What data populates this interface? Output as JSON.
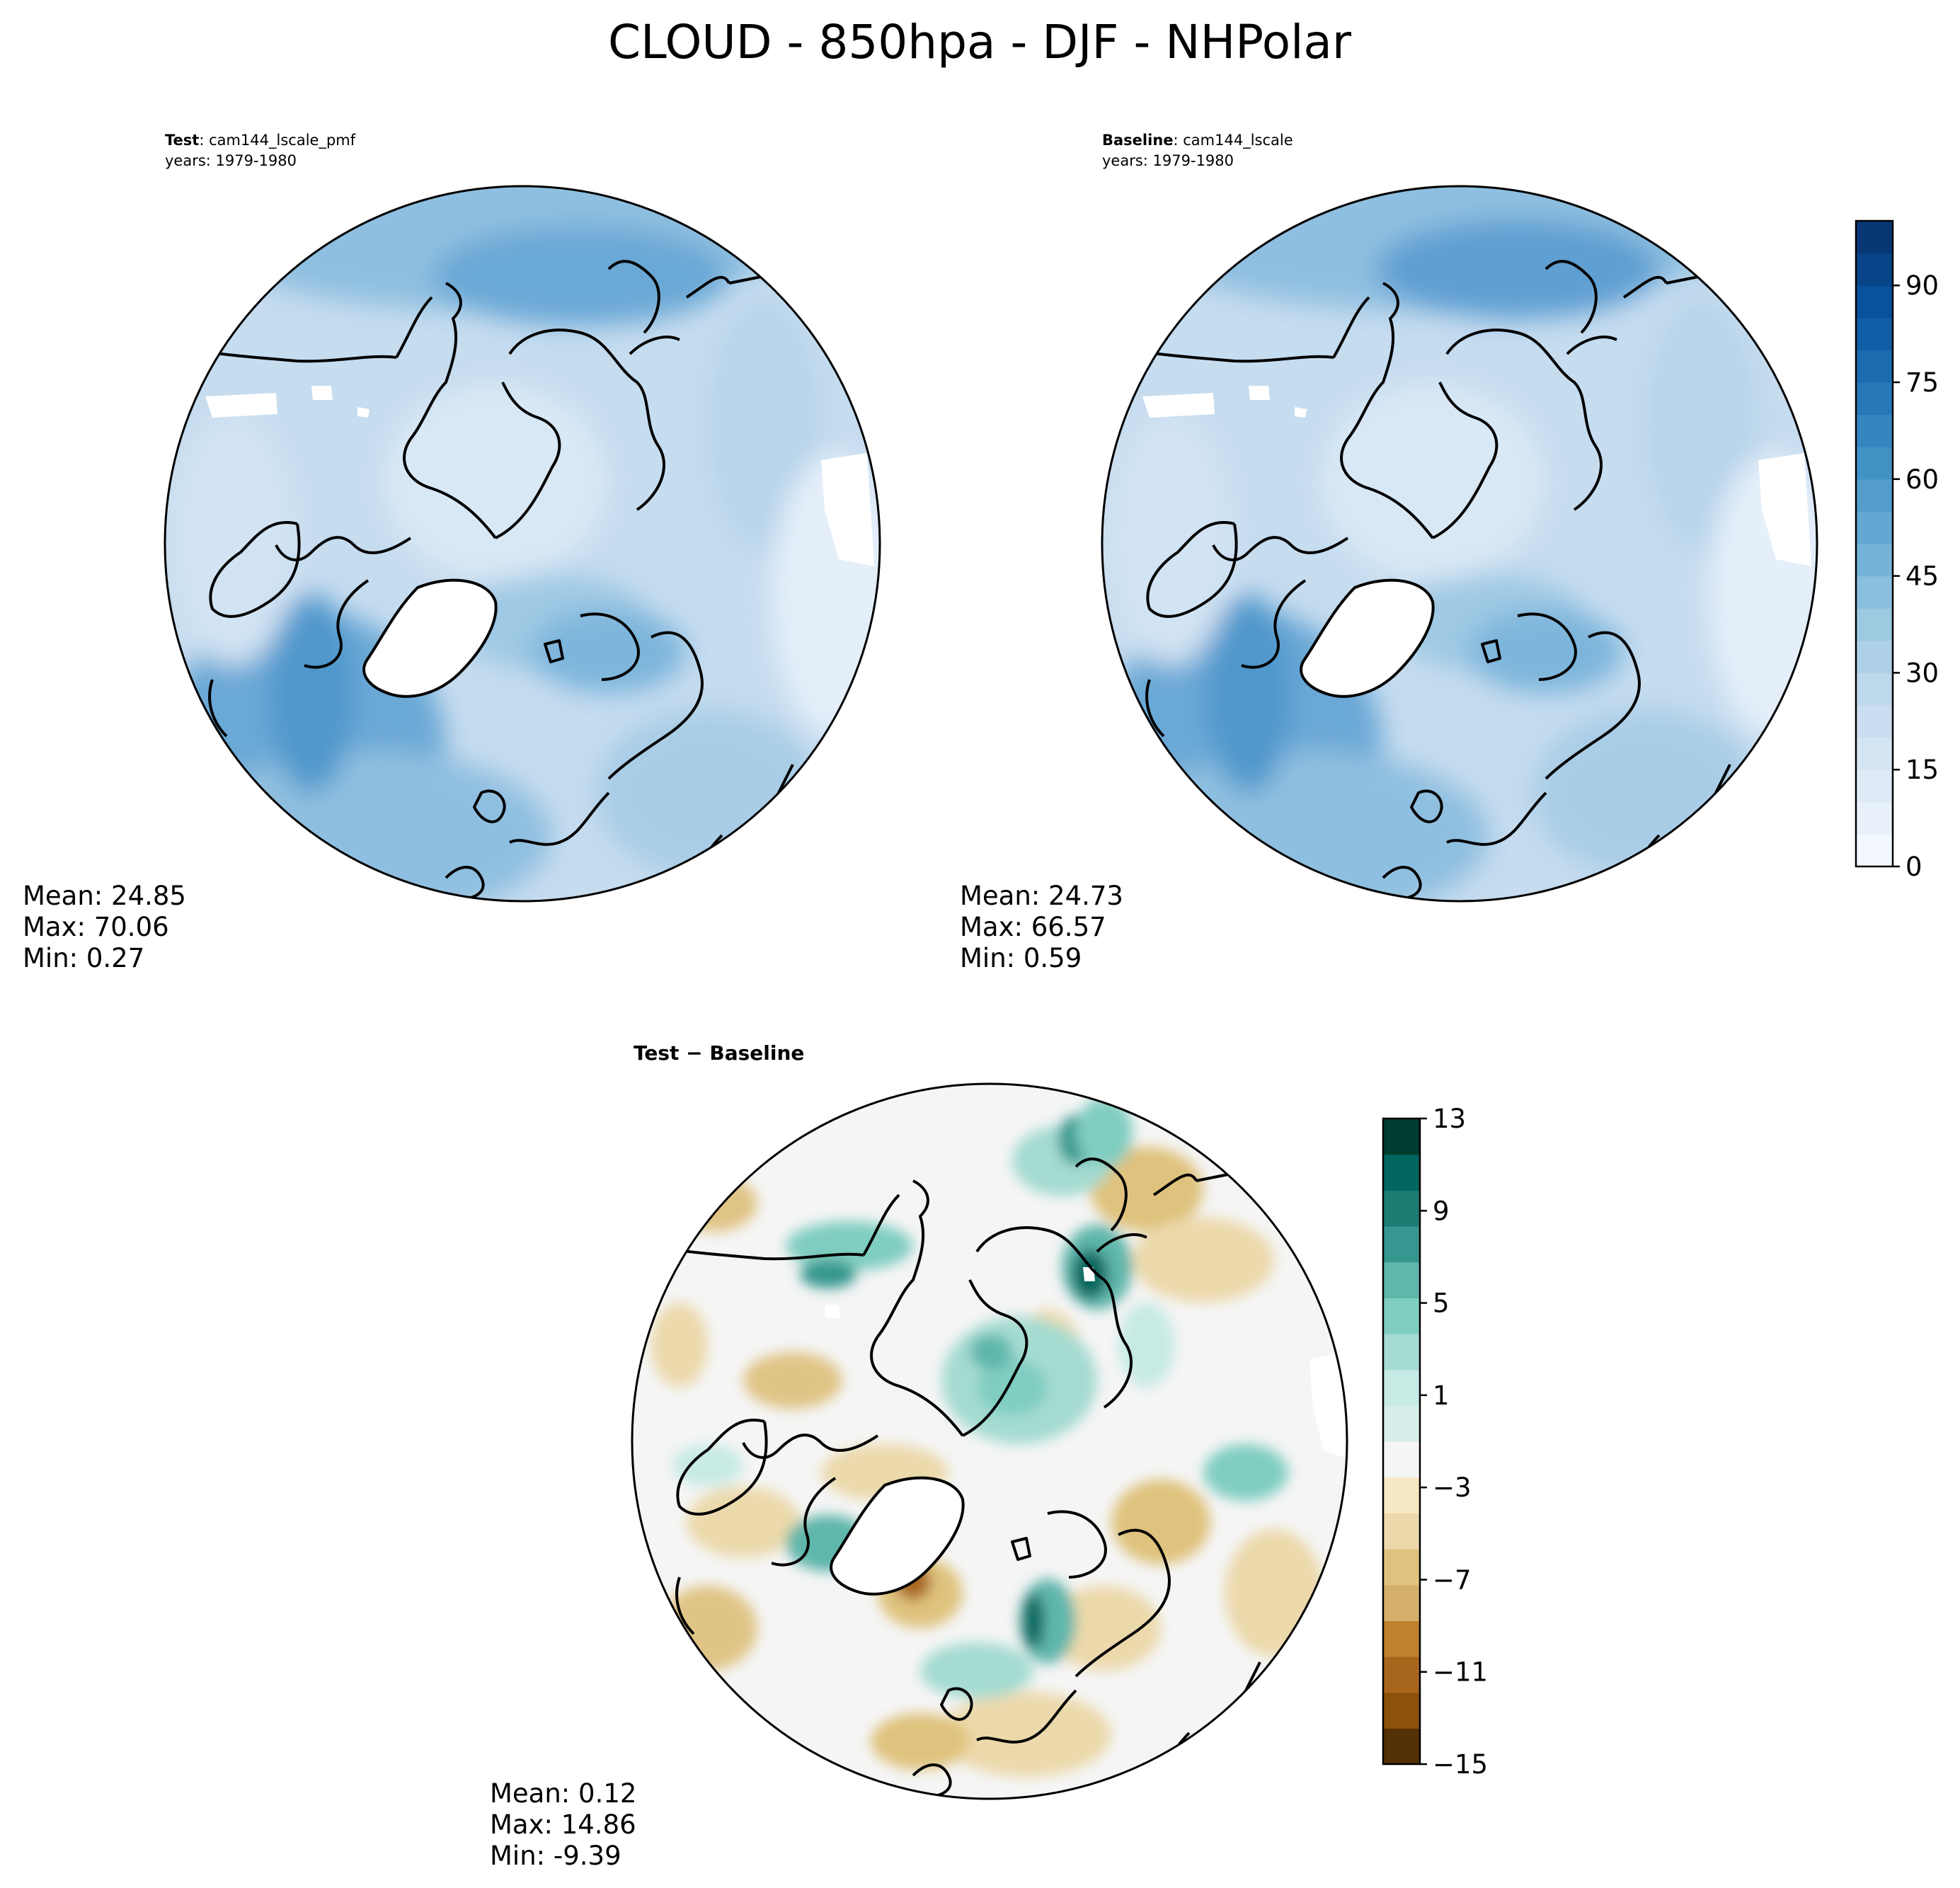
{
  "chart_data": {
    "type": "heatmap",
    "title": "CLOUD - 850hpa - DJF - NHPolar",
    "panels": [
      {
        "label_bold": "Test",
        "label_rest": ": cam144_lscale_pmf",
        "years": "years: 1979-1980",
        "mean": "Mean: 24.85",
        "max": "Max: 70.06",
        "min": "Min:  0.27"
      },
      {
        "label_bold": "Baseline",
        "label_rest": ": cam144_lscale",
        "years": "years: 1979-1980",
        "mean": "Mean: 24.73",
        "max": "Max: 66.57",
        "min": "Min:  0.59"
      },
      {
        "label_bold": "Test − Baseline",
        "mean": "Mean:  0.12",
        "max": "Max: 14.86",
        "min": "Min: -9.39"
      }
    ],
    "colorbar_main": {
      "colormap": "Blues",
      "range": [
        0,
        100
      ],
      "ticks": [
        0,
        15,
        30,
        45,
        60,
        75,
        90
      ],
      "tick_labels": [
        "0",
        "15",
        "30",
        "45",
        "60",
        "75",
        "90"
      ],
      "levels": 20
    },
    "colorbar_diff": {
      "colormap": "BrBG",
      "range": [
        -15,
        13
      ],
      "ticks": [
        -15,
        -11,
        -7,
        -3,
        1,
        5,
        9,
        13
      ],
      "tick_labels": [
        "−15",
        "−11",
        "−7",
        "−3",
        "1",
        "5",
        "9",
        "13"
      ],
      "colors": [
        "#543005",
        "#8c510a",
        "#a8661c",
        "#bf812d",
        "#d5b06b",
        "#dfc27d",
        "#ecd9ab",
        "#f6e8c3",
        "#f5f5f5",
        "#d6eeea",
        "#c7eae5",
        "#a5dbd1",
        "#80cdc1",
        "#5fb6ab",
        "#35978f",
        "#1d7c74",
        "#01665e",
        "#003c30"
      ]
    }
  }
}
